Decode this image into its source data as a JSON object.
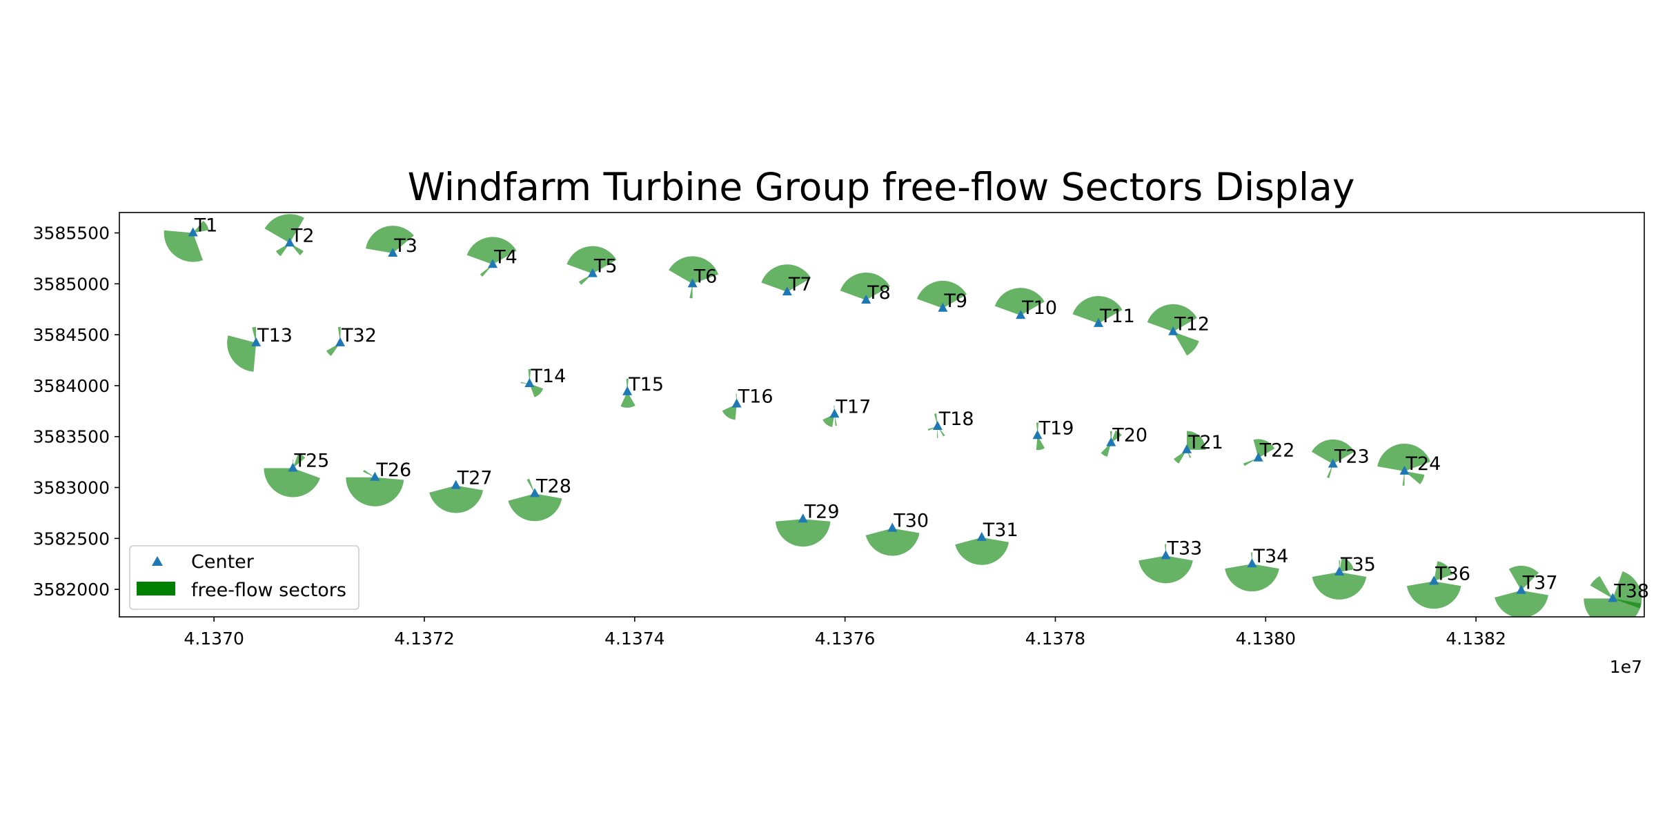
{
  "chart_data": {
    "type": "scatter",
    "title": "Windfarm Turbine Group free-flow Sectors Display",
    "xlabel": "",
    "ylabel": "",
    "x_offset_label": "1e7",
    "xlim": [
      41369100,
      41383600
    ],
    "ylim": [
      3581730,
      3585700
    ],
    "x_ticks": [
      41370000,
      41372000,
      41374000,
      41376000,
      41378000,
      41380000,
      41382000
    ],
    "x_tick_labels": [
      "4.1370",
      "4.1372",
      "4.1374",
      "4.1376",
      "4.1378",
      "4.1380",
      "4.1382"
    ],
    "y_ticks": [
      3582000,
      3582500,
      3583000,
      3583500,
      3584000,
      3584500,
      3585000,
      3585500
    ],
    "y_tick_labels": [
      "3582000",
      "3582500",
      "3583000",
      "3583500",
      "3584000",
      "3584500",
      "3585000",
      "3585500"
    ],
    "grid": false,
    "legend": {
      "position": "lower-left",
      "entries": [
        "Center",
        "free-flow sectors"
      ]
    },
    "colors": {
      "center": "#1f77b4",
      "sector": "#008000",
      "sector_alpha": 0.6
    },
    "series": [
      {
        "name": "Center",
        "marker": "triangle-up"
      },
      {
        "name": "free-flow sectors",
        "marker": "wedge"
      }
    ],
    "turbines": [
      {
        "label": "T1",
        "x": 41369800,
        "y": 3585500,
        "sectors": [
          [
            160,
            275,
            1
          ],
          [
            40,
            80,
            0.55
          ]
        ]
      },
      {
        "label": "T2",
        "x": 41370720,
        "y": 3585400,
        "sectors": [
          [
            300,
            30,
            1
          ],
          [
            120,
            140,
            0.55
          ],
          [
            215,
            240,
            0.55
          ]
        ]
      },
      {
        "label": "T3",
        "x": 41371700,
        "y": 3585300,
        "sectors": [
          [
            280,
            50,
            0.95
          ]
        ]
      },
      {
        "label": "T4",
        "x": 41372650,
        "y": 3585190,
        "sectors": [
          [
            290,
            60,
            0.95
          ],
          [
            220,
            232,
            0.55
          ]
        ]
      },
      {
        "label": "T5",
        "x": 41373600,
        "y": 3585100,
        "sectors": [
          [
            290,
            60,
            0.95
          ],
          [
            225,
            240,
            0.55
          ]
        ]
      },
      {
        "label": "T6",
        "x": 41374550,
        "y": 3585000,
        "sectors": [
          [
            300,
            70,
            0.95
          ],
          [
            180,
            192,
            0.5
          ]
        ]
      },
      {
        "label": "T7",
        "x": 41375450,
        "y": 3584920,
        "sectors": [
          [
            290,
            60,
            0.95
          ]
        ]
      },
      {
        "label": "T8",
        "x": 41376200,
        "y": 3584840,
        "sectors": [
          [
            290,
            60,
            0.95
          ]
        ]
      },
      {
        "label": "T9",
        "x": 41376930,
        "y": 3584760,
        "sectors": [
          [
            290,
            60,
            0.95
          ]
        ]
      },
      {
        "label": "T10",
        "x": 41377670,
        "y": 3584690,
        "sectors": [
          [
            290,
            60,
            0.95
          ]
        ]
      },
      {
        "label": "T11",
        "x": 41378410,
        "y": 3584610,
        "sectors": [
          [
            290,
            60,
            0.95
          ]
        ]
      },
      {
        "label": "T12",
        "x": 41379120,
        "y": 3584530,
        "sectors": [
          [
            290,
            60,
            0.95
          ],
          [
            110,
            150,
            0.95
          ]
        ]
      },
      {
        "label": "T13",
        "x": 41370400,
        "y": 3584420,
        "sectors": [
          [
            185,
            285,
            1
          ],
          [
            345,
            360,
            0.55
          ]
        ]
      },
      {
        "label": "T32",
        "x": 41371200,
        "y": 3584420,
        "sectors": [
          [
            215,
            240,
            0.55
          ],
          [
            352,
            362,
            0.55
          ]
        ]
      },
      {
        "label": "T14",
        "x": 41373000,
        "y": 3584020,
        "sectors": [
          [
            110,
            160,
            0.5
          ],
          [
            355,
            365,
            0.5
          ],
          [
            272,
            280,
            0.3
          ]
        ]
      },
      {
        "label": "T15",
        "x": 41373930,
        "y": 3583940,
        "sectors": [
          [
            150,
            205,
            0.55
          ],
          [
            355,
            365,
            0.45
          ]
        ]
      },
      {
        "label": "T16",
        "x": 41374970,
        "y": 3583820,
        "sectors": [
          [
            185,
            245,
            0.55
          ],
          [
            355,
            360,
            0.35
          ]
        ]
      },
      {
        "label": "T17",
        "x": 41375900,
        "y": 3583720,
        "sectors": [
          [
            190,
            245,
            0.45
          ],
          [
            168,
            176,
            0.4
          ],
          [
            355,
            360,
            0.3
          ]
        ]
      },
      {
        "label": "T18",
        "x": 41376880,
        "y": 3583600,
        "sectors": [
          [
            345,
            355,
            0.45
          ],
          [
            140,
            150,
            0.4
          ],
          [
            178,
            183,
            0.4
          ],
          [
            245,
            255,
            0.35
          ]
        ]
      },
      {
        "label": "T19",
        "x": 41377830,
        "y": 3583510,
        "sectors": [
          [
            150,
            185,
            0.5
          ],
          [
            355,
            365,
            0.45
          ]
        ]
      },
      {
        "label": "T20",
        "x": 41378530,
        "y": 3583440,
        "sectors": [
          [
            195,
            225,
            0.5
          ],
          [
            20,
            55,
            0.45
          ],
          [
            355,
            365,
            0.4
          ]
        ]
      },
      {
        "label": "T21",
        "x": 41379250,
        "y": 3583370,
        "sectors": [
          [
            0,
            90,
            0.65
          ],
          [
            210,
            235,
            0.55
          ],
          [
            150,
            160,
            0.3
          ]
        ]
      },
      {
        "label": "T22",
        "x": 41379930,
        "y": 3583290,
        "sectors": [
          [
            345,
            60,
            0.65
          ],
          [
            240,
            250,
            0.55
          ]
        ]
      },
      {
        "label": "T23",
        "x": 41380640,
        "y": 3583230,
        "sectors": [
          [
            300,
            60,
            0.85
          ],
          [
            195,
            205,
            0.5
          ]
        ]
      },
      {
        "label": "T24",
        "x": 41381320,
        "y": 3583160,
        "sectors": [
          [
            280,
            70,
            0.95
          ],
          [
            100,
            130,
            0.7
          ],
          [
            180,
            188,
            0.5
          ]
        ]
      },
      {
        "label": "T25",
        "x": 41370750,
        "y": 3583190,
        "sectors": [
          [
            110,
            270,
            1
          ],
          [
            20,
            50,
            0.55
          ],
          [
            358,
            362,
            0.3
          ]
        ]
      },
      {
        "label": "T26",
        "x": 41371530,
        "y": 3583100,
        "sectors": [
          [
            95,
            270,
            1
          ],
          [
            295,
            305,
            0.45
          ]
        ]
      },
      {
        "label": "T27",
        "x": 41372300,
        "y": 3583020,
        "sectors": [
          [
            100,
            255,
            0.95
          ]
        ]
      },
      {
        "label": "T28",
        "x": 41373050,
        "y": 3582940,
        "sectors": [
          [
            100,
            255,
            0.95
          ],
          [
            330,
            340,
            0.55
          ]
        ]
      },
      {
        "label": "T29",
        "x": 41375600,
        "y": 3582690,
        "sectors": [
          [
            95,
            265,
            0.95
          ]
        ]
      },
      {
        "label": "T30",
        "x": 41376450,
        "y": 3582600,
        "sectors": [
          [
            100,
            255,
            0.95
          ]
        ]
      },
      {
        "label": "T31",
        "x": 41377300,
        "y": 3582510,
        "sectors": [
          [
            100,
            255,
            0.95
          ]
        ]
      },
      {
        "label": "T33",
        "x": 41379050,
        "y": 3582330,
        "sectors": [
          [
            100,
            260,
            0.95
          ],
          [
            355,
            362,
            0.4
          ]
        ]
      },
      {
        "label": "T34",
        "x": 41379870,
        "y": 3582250,
        "sectors": [
          [
            100,
            260,
            0.95
          ],
          [
            355,
            362,
            0.4
          ]
        ]
      },
      {
        "label": "T35",
        "x": 41380700,
        "y": 3582170,
        "sectors": [
          [
            100,
            260,
            0.95
          ],
          [
            10,
            80,
            0.5
          ],
          [
            358,
            364,
            0.4
          ]
        ]
      },
      {
        "label": "T36",
        "x": 41381600,
        "y": 3582080,
        "sectors": [
          [
            100,
            260,
            0.95
          ],
          [
            10,
            70,
            0.7
          ]
        ]
      },
      {
        "label": "T37",
        "x": 41382430,
        "y": 3581990,
        "sectors": [
          [
            100,
            255,
            0.95
          ],
          [
            330,
            45,
            0.85
          ]
        ]
      },
      {
        "label": "T38",
        "x": 41383300,
        "y": 3581910,
        "sectors": [
          [
            100,
            270,
            1
          ],
          [
            20,
            110,
            1
          ],
          [
            300,
            330,
            0.9
          ]
        ]
      }
    ]
  }
}
